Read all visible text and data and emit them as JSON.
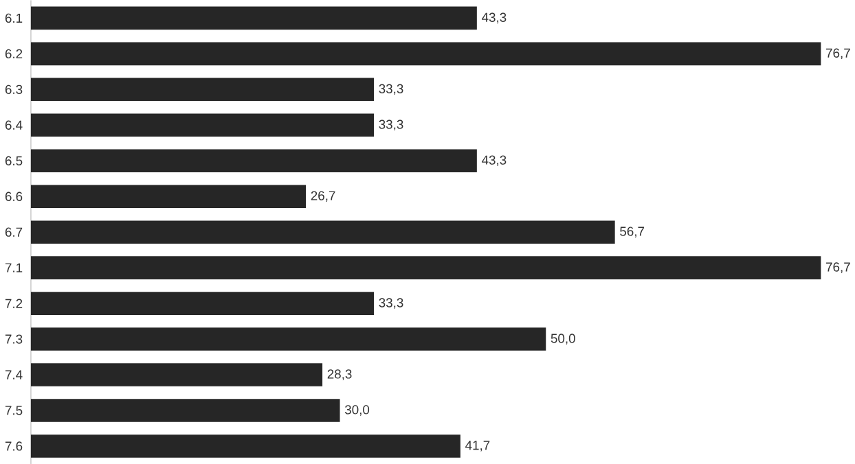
{
  "chart_data": {
    "type": "bar",
    "orientation": "horizontal",
    "categories": [
      "6.1",
      "6.2",
      "6.3",
      "6.4",
      "6.5",
      "6.6",
      "6.7",
      "7.1",
      "7.2",
      "7.3",
      "7.4",
      "7.5",
      "7.6"
    ],
    "values": [
      43.3,
      76.7,
      33.3,
      33.3,
      43.3,
      26.7,
      56.7,
      76.7,
      33.3,
      50.0,
      28.3,
      30.0,
      41.7
    ],
    "value_labels": [
      "43,3",
      "76,7",
      "33,3",
      "33,3",
      "43,3",
      "26,7",
      "56,7",
      "76,7",
      "33,3",
      "50,0",
      "28,3",
      "30,0",
      "41,7"
    ],
    "color": "#262626"
  }
}
